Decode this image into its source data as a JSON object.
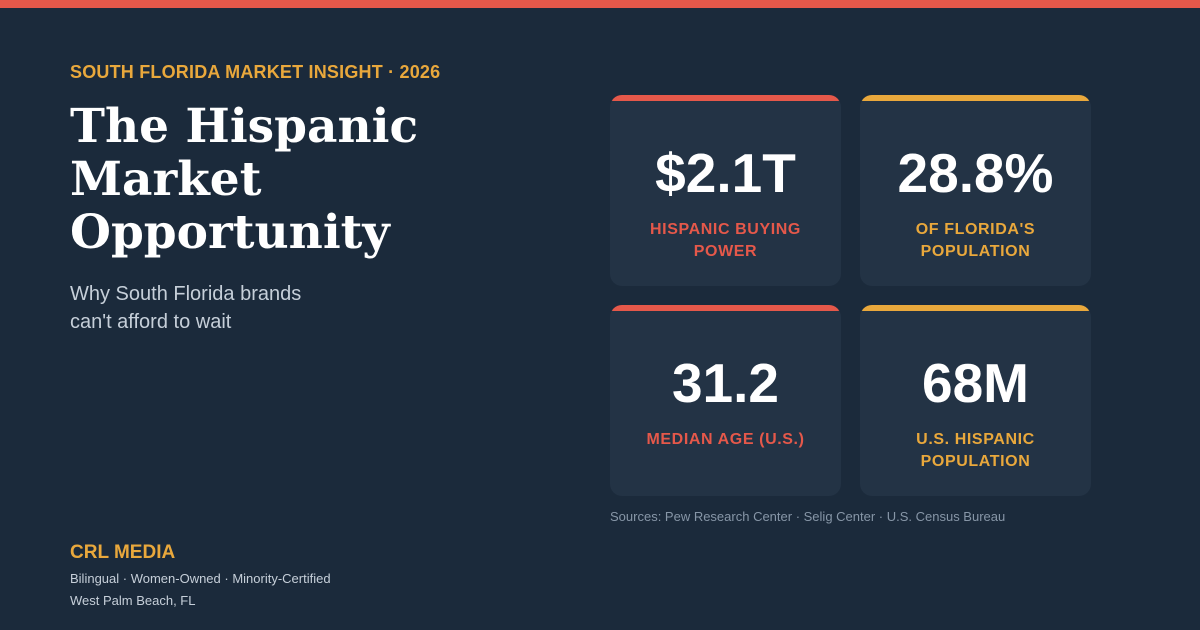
{
  "colors": {
    "background": "#1b2a3b",
    "card": "#233345",
    "accent_red": "#e5584a",
    "accent_gold": "#e9a83c"
  },
  "eyebrow": "SOUTH FLORIDA MARKET INSIGHT · 2026",
  "headline": [
    "The Hispanic",
    "Market",
    "Opportunity"
  ],
  "subhead": [
    "Why South Florida brands",
    "can't afford to wait"
  ],
  "stats": [
    {
      "value": "$2.1T",
      "label": [
        "HISPANIC BUYING",
        "POWER"
      ],
      "accent": "red"
    },
    {
      "value": "28.8%",
      "label": [
        "OF FLORIDA'S",
        "POPULATION"
      ],
      "accent": "gold"
    },
    {
      "value": "31.2",
      "label": [
        "MEDIAN AGE (U.S.)"
      ],
      "accent": "red"
    },
    {
      "value": "68M",
      "label": [
        "U.S. HISPANIC",
        "POPULATION"
      ],
      "accent": "gold"
    }
  ],
  "sources": "Sources: Pew Research Center · Selig Center · U.S. Census Bureau",
  "brand": {
    "name": "CRL MEDIA",
    "tagline": "Bilingual · Women-Owned · Minority-Certified",
    "location": "West Palm Beach, FL"
  }
}
